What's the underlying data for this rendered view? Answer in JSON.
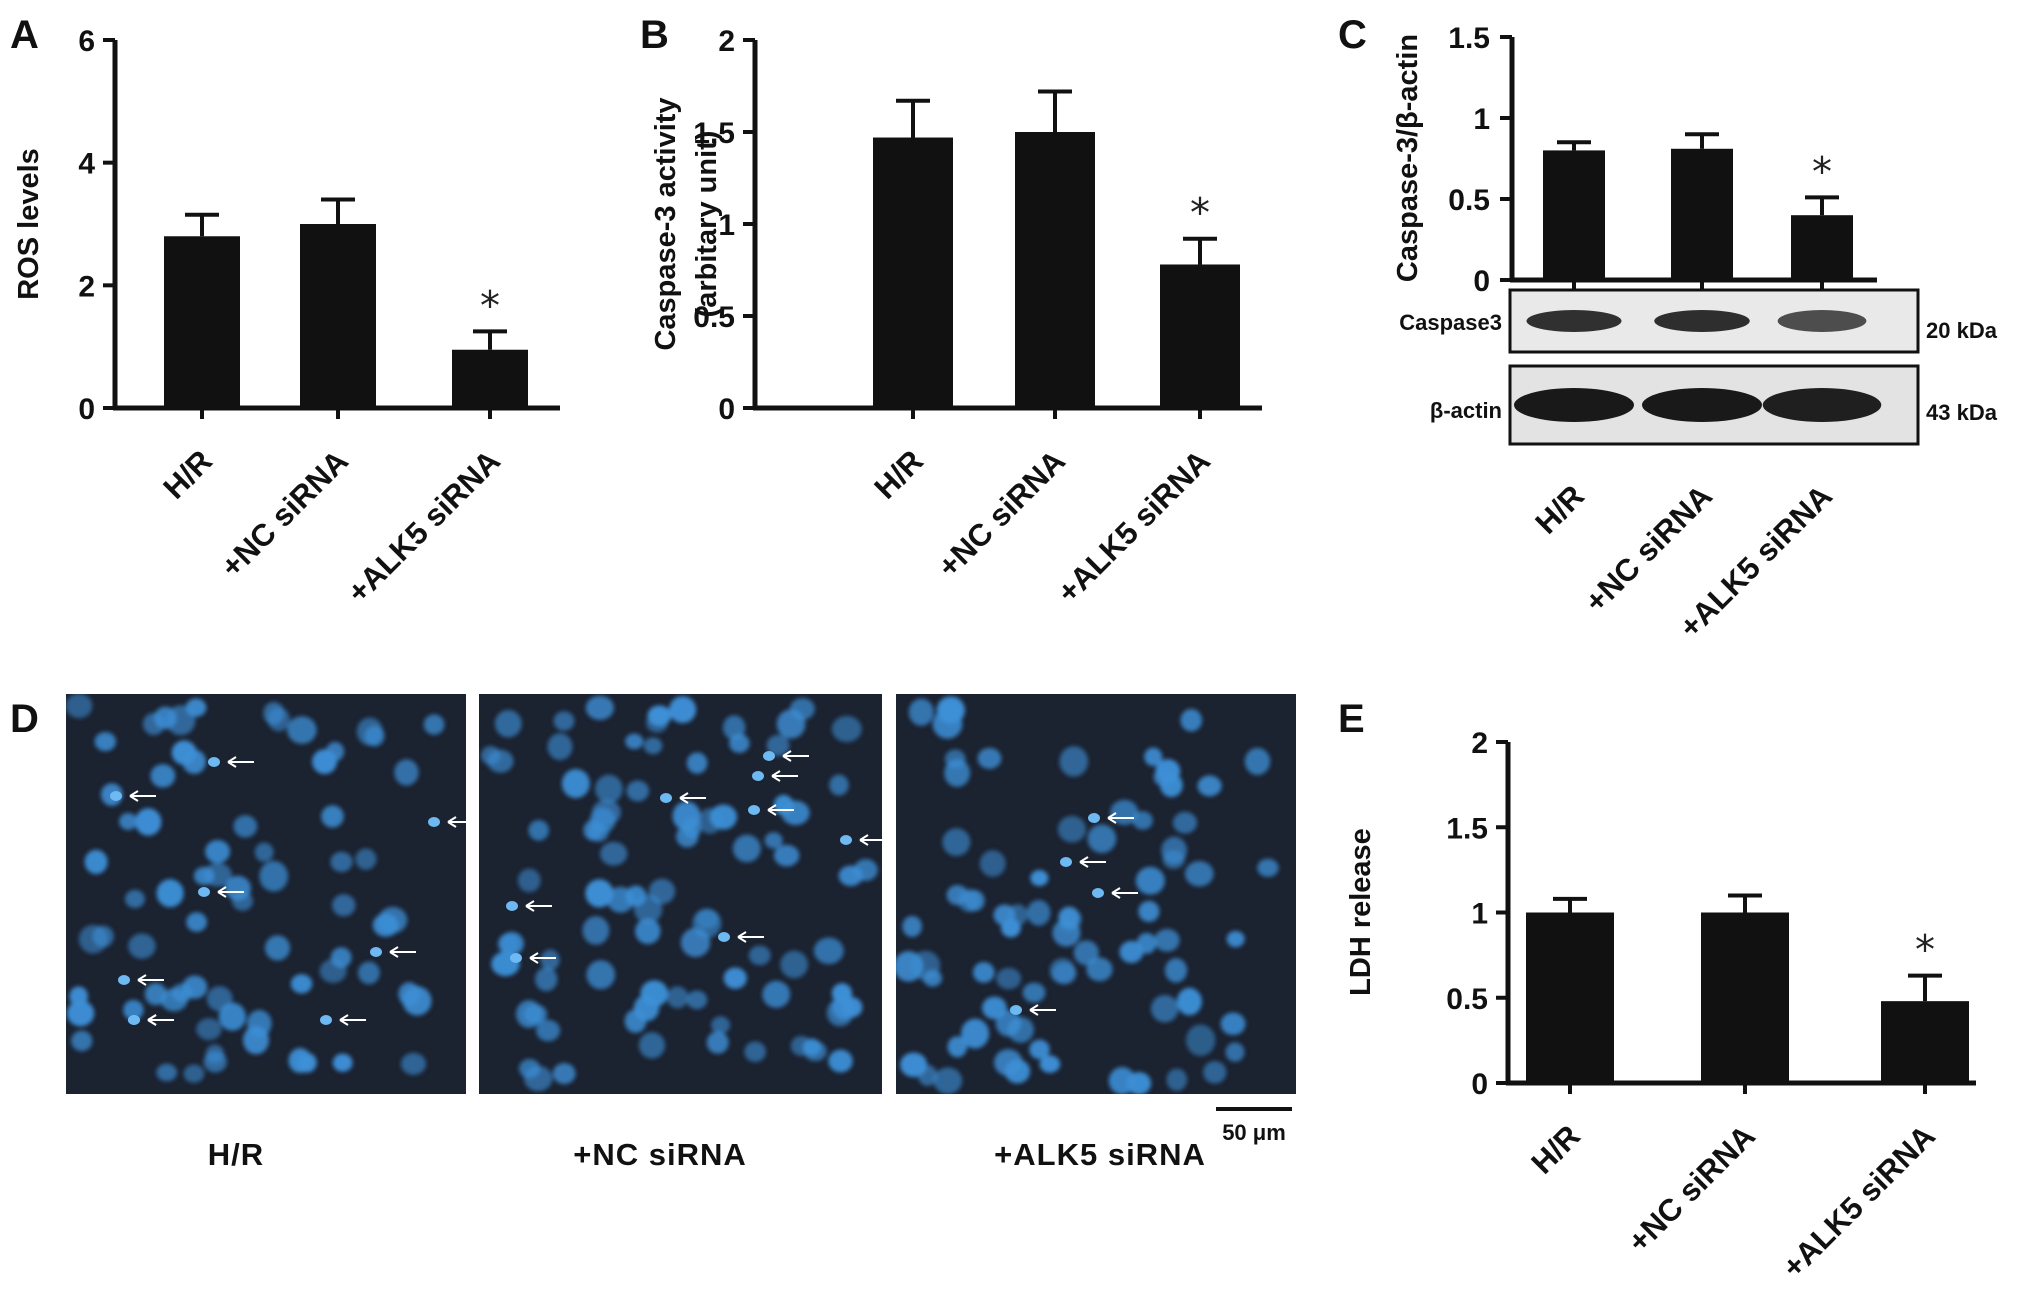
{
  "panel_letters": [
    "A",
    "B",
    "C",
    "D",
    "E"
  ],
  "chart_data": [
    {
      "panel": "A",
      "type": "bar",
      "ylabel": "ROS levels",
      "categories": [
        "H/R",
        "+NC siRNA",
        "+ALK5 siRNA"
      ],
      "values": [
        2.8,
        3.0,
        0.95
      ],
      "errors": [
        0.35,
        0.4,
        0.3
      ],
      "significance": [
        "",
        "",
        "*"
      ],
      "ylim": [
        0,
        6
      ],
      "yticks": [
        0,
        2,
        4,
        6
      ],
      "ytick_labels": [
        "0",
        "2",
        "4",
        "6"
      ]
    },
    {
      "panel": "B",
      "type": "bar",
      "ylabel": "Caspase-3 activity",
      "ylabel2": "(arbitary unit)",
      "categories": [
        "H/R",
        "+NC siRNA",
        "+ALK5 siRNA"
      ],
      "values": [
        1.47,
        1.5,
        0.78
      ],
      "errors": [
        0.2,
        0.22,
        0.14
      ],
      "significance": [
        "",
        "",
        "*"
      ],
      "ylim": [
        0,
        2
      ],
      "yticks": [
        0,
        0.5,
        1,
        1.5,
        2
      ],
      "ytick_labels": [
        "0",
        "0.5",
        "1",
        "1.5",
        "2"
      ]
    },
    {
      "panel": "C",
      "type": "bar",
      "ylabel": "Caspase-3/β-actin",
      "categories": [
        "H/R",
        "+NC siRNA",
        "+ALK5 siRNA"
      ],
      "values": [
        0.8,
        0.81,
        0.4
      ],
      "errors": [
        0.05,
        0.09,
        0.11
      ],
      "significance": [
        "",
        "",
        "*"
      ],
      "ylim": [
        0,
        1.5
      ],
      "yticks": [
        0,
        0.5,
        1,
        1.5
      ],
      "ytick_labels": [
        "0",
        "0.5",
        "1",
        "1.5"
      ]
    },
    {
      "panel": "E",
      "type": "bar",
      "ylabel": "LDH release",
      "categories": [
        "H/R",
        "+NC siRNA",
        "+ALK5 siRNA"
      ],
      "values": [
        1.0,
        1.0,
        0.48
      ],
      "errors": [
        0.08,
        0.1,
        0.15
      ],
      "significance": [
        "",
        "",
        "*"
      ],
      "ylim": [
        0,
        2
      ],
      "yticks": [
        0,
        0.5,
        1,
        1.5,
        2
      ],
      "ytick_labels": [
        "0",
        "0.5",
        "1",
        "1.5",
        "2"
      ]
    }
  ],
  "western_blot": {
    "rows": [
      {
        "label": "Caspase3",
        "size": "20 kDa",
        "band_intensity": [
          0.8,
          0.82,
          0.55
        ]
      },
      {
        "label": "β-actin",
        "size": "43 kDa",
        "band_intensity": [
          1.0,
          1.0,
          0.95
        ]
      }
    ]
  },
  "micrographs": {
    "captions": [
      "H/R",
      "+NC siRNA",
      "+ALK5 siRNA"
    ],
    "scale_bar": "50 μm",
    "colors": {
      "background": "#1b2230",
      "nucleus": "#3d8fd6",
      "nucleus_bright": "#6fb9f2"
    },
    "arrow_counts": [
      9,
      8,
      4
    ]
  },
  "colors": {
    "bar": "#111111",
    "axis": "#111111",
    "text": "#111111"
  }
}
